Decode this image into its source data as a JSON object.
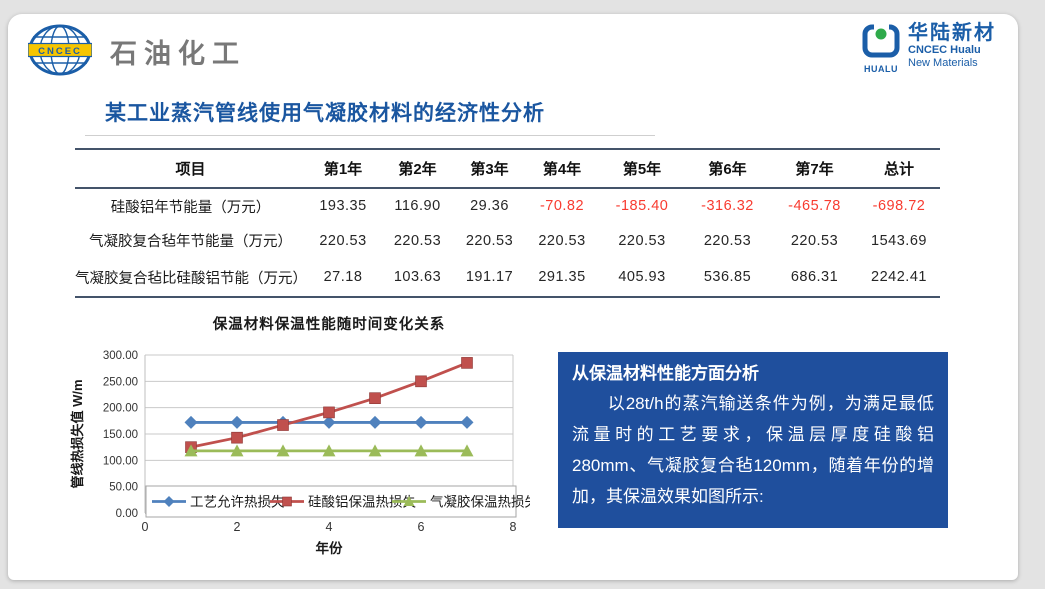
{
  "header": {
    "cncec": {
      "logo_text": "CNCEC",
      "brand": "石油化工"
    },
    "hualu": {
      "abbr": "HUALU",
      "name_cn": "华陆新材",
      "name_en_1": "CNCEC Hualu",
      "name_en_2": "New Materials"
    }
  },
  "title": "某工业蒸汽管线使用气凝胶材料的经济性分析",
  "table": {
    "headers": [
      "项目",
      "第1年",
      "第2年",
      "第3年",
      "第4年",
      "第5年",
      "第6年",
      "第7年",
      "总计"
    ],
    "rows": [
      {
        "label": "硅酸铝年节能量（万元）",
        "values": [
          "193.35",
          "116.90",
          "29.36",
          "-70.82",
          "-185.40",
          "-316.32",
          "-465.78",
          "-698.72"
        ]
      },
      {
        "label": "气凝胶复合毡年节能量（万元）",
        "values": [
          "220.53",
          "220.53",
          "220.53",
          "220.53",
          "220.53",
          "220.53",
          "220.53",
          "1543.69"
        ]
      },
      {
        "label": "气凝胶复合毡比硅酸铝节能（万元）",
        "values": [
          "27.18",
          "103.63",
          "191.17",
          "291.35",
          "405.93",
          "536.85",
          "686.31",
          "2242.41"
        ]
      }
    ],
    "negative_color": "#f83b30"
  },
  "chart_data": {
    "type": "line",
    "title": "保温材料保温性能随时间变化关系",
    "xlabel": "年份",
    "ylabel": "管线热损失值 W/m",
    "x": [
      1,
      2,
      3,
      4,
      5,
      6,
      7
    ],
    "xlim": [
      0,
      8
    ],
    "xticks": [
      0,
      2,
      4,
      6,
      8
    ],
    "ylim": [
      0,
      300
    ],
    "ytick_step": 50,
    "grid": true,
    "legend_position": "bottom-inside",
    "series": [
      {
        "name": "工艺允许热损失",
        "color": "#4f81bd",
        "marker": "diamond",
        "values": [
          172,
          172,
          172,
          172,
          172,
          172,
          172
        ]
      },
      {
        "name": "硅酸铝保温热损失",
        "color": "#c0504d",
        "marker": "square",
        "values": [
          125,
          143,
          167,
          191,
          218,
          250,
          285
        ]
      },
      {
        "name": "气凝胶保温热损失",
        "color": "#9bbb59",
        "marker": "triangle",
        "values": [
          118,
          118,
          118,
          118,
          118,
          118,
          118
        ]
      }
    ]
  },
  "info_box": {
    "bg": "#1f4f9d",
    "title": "从保温材料性能方面分析",
    "body": "以28t/h的蒸汽输送条件为例，为满足最低流量时的工艺要求，保温层厚度硅酸铝280mm、气凝胶复合毡120mm，随着年份的增加，其保温效果如图所示:"
  },
  "colors": {
    "title_blue": "#1a56a0",
    "table_line": "#44546a",
    "logo_blue": "#1b5ea8",
    "logo_green": "#2faa4a",
    "logo_yellow": "#f6c500",
    "brand_gray": "#787878"
  }
}
